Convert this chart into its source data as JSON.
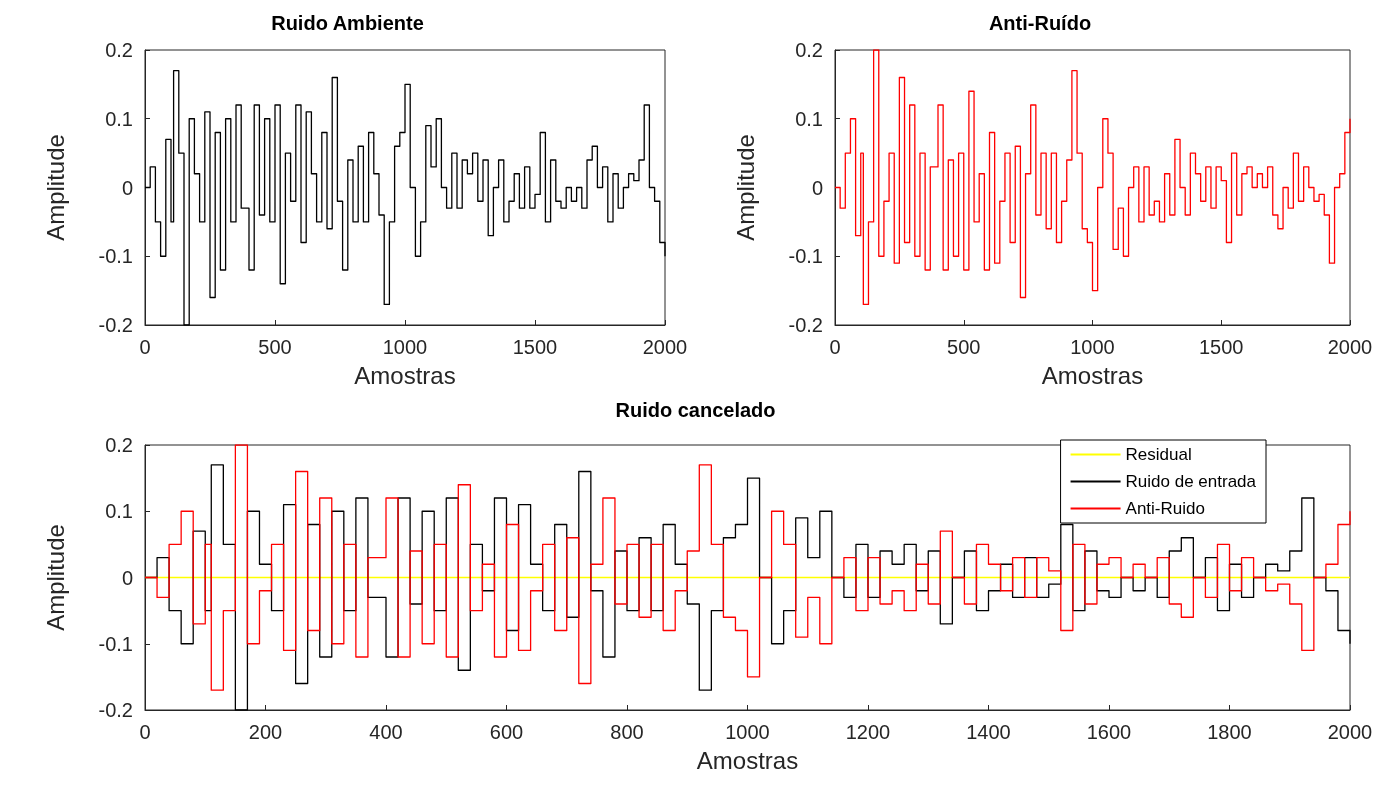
{
  "chart_data": [
    {
      "type": "step",
      "title": "Ruido Ambiente",
      "xlabel": "Amostras",
      "ylabel": "Amplitude",
      "xlim": [
        0,
        2000
      ],
      "xticks": [
        0,
        500,
        1000,
        1500,
        2000
      ],
      "ylim": [
        -0.2,
        0.2
      ],
      "yticks": [
        -0.2,
        -0.1,
        0,
        0.1,
        0.2
      ],
      "grid": false,
      "legend": false,
      "x": [
        0,
        20,
        40,
        60,
        80,
        100,
        110,
        130,
        150,
        170,
        190,
        210,
        230,
        250,
        270,
        290,
        310,
        330,
        350,
        370,
        400,
        420,
        440,
        460,
        480,
        500,
        520,
        540,
        560,
        580,
        600,
        620,
        640,
        660,
        680,
        700,
        720,
        740,
        760,
        780,
        800,
        820,
        840,
        860,
        880,
        900,
        920,
        940,
        960,
        980,
        1000,
        1020,
        1040,
        1060,
        1080,
        1100,
        1120,
        1140,
        1160,
        1180,
        1200,
        1220,
        1240,
        1260,
        1280,
        1300,
        1320,
        1340,
        1360,
        1380,
        1400,
        1420,
        1440,
        1460,
        1480,
        1500,
        1520,
        1540,
        1560,
        1580,
        1600,
        1620,
        1640,
        1660,
        1680,
        1700,
        1720,
        1740,
        1760,
        1780,
        1800,
        1820,
        1840,
        1860,
        1880,
        1900,
        1920,
        1940,
        1960,
        1980,
        2000
      ],
      "series": [
        {
          "color": "#000000",
          "values": [
            0,
            0.03,
            -0.05,
            -0.1,
            0.07,
            -0.05,
            0.17,
            0.05,
            -0.2,
            0.1,
            0.02,
            -0.05,
            0.11,
            -0.16,
            0.08,
            -0.12,
            0.1,
            -0.05,
            0.12,
            -0.03,
            -0.12,
            0.12,
            -0.04,
            0.1,
            -0.05,
            0.12,
            -0.14,
            0.05,
            -0.02,
            0.12,
            -0.08,
            0.11,
            0.02,
            -0.05,
            0.08,
            -0.06,
            0.16,
            -0.02,
            -0.12,
            0.04,
            -0.05,
            0.06,
            -0.05,
            0.08,
            0.02,
            -0.04,
            -0.17,
            -0.05,
            0.06,
            0.08,
            0.15,
            0,
            -0.1,
            -0.05,
            0.09,
            0.03,
            0.1,
            0,
            -0.03,
            0.05,
            -0.03,
            0.04,
            0.02,
            0.05,
            -0.02,
            0.04,
            -0.07,
            0,
            0.04,
            -0.05,
            -0.02,
            0.02,
            -0.03,
            0.03,
            -0.03,
            -0.01,
            0.08,
            -0.05,
            0.04,
            -0.02,
            -0.03,
            0,
            -0.02,
            0,
            -0.03,
            0.04,
            0.06,
            0,
            0.03,
            -0.05,
            0.02,
            -0.03,
            0,
            0.02,
            0.01,
            0.04,
            0.12,
            0,
            -0.02,
            -0.08,
            -0.1
          ]
        }
      ]
    },
    {
      "type": "step",
      "title": "Anti-Ruído",
      "xlabel": "Amostras",
      "ylabel": "Amplitude",
      "xlim": [
        0,
        2000
      ],
      "xticks": [
        0,
        500,
        1000,
        1500,
        2000
      ],
      "ylim": [
        -0.2,
        0.2
      ],
      "yticks": [
        -0.2,
        -0.1,
        0,
        0.1,
        0.2
      ],
      "grid": false,
      "legend": false,
      "x": [
        0,
        20,
        40,
        60,
        80,
        100,
        110,
        130,
        150,
        170,
        190,
        210,
        230,
        250,
        270,
        290,
        310,
        330,
        350,
        370,
        400,
        420,
        440,
        460,
        480,
        500,
        520,
        540,
        560,
        580,
        600,
        620,
        640,
        660,
        680,
        700,
        720,
        740,
        760,
        780,
        800,
        820,
        840,
        860,
        880,
        900,
        920,
        940,
        960,
        980,
        1000,
        1020,
        1040,
        1060,
        1080,
        1100,
        1120,
        1140,
        1160,
        1180,
        1200,
        1220,
        1240,
        1260,
        1280,
        1300,
        1320,
        1340,
        1360,
        1380,
        1400,
        1420,
        1440,
        1460,
        1480,
        1500,
        1520,
        1540,
        1560,
        1580,
        1600,
        1620,
        1640,
        1660,
        1680,
        1700,
        1720,
        1740,
        1760,
        1780,
        1800,
        1820,
        1840,
        1860,
        1880,
        1900,
        1920,
        1940,
        1960,
        1980,
        2000
      ],
      "series": [
        {
          "color": "#ff0000",
          "values": [
            0,
            -0.03,
            0.05,
            0.1,
            -0.07,
            0.05,
            -0.17,
            -0.05,
            0.2,
            -0.1,
            -0.02,
            0.05,
            -0.11,
            0.16,
            -0.08,
            0.12,
            -0.1,
            0.05,
            -0.12,
            0.03,
            0.12,
            -0.12,
            0.04,
            -0.1,
            0.05,
            -0.12,
            0.14,
            -0.05,
            0.02,
            -0.12,
            0.08,
            -0.11,
            -0.02,
            0.05,
            -0.08,
            0.06,
            -0.16,
            0.02,
            0.12,
            -0.04,
            0.05,
            -0.06,
            0.05,
            -0.08,
            -0.02,
            0.04,
            0.17,
            0.05,
            -0.06,
            -0.08,
            -0.15,
            0,
            0.1,
            0.05,
            -0.09,
            -0.03,
            -0.1,
            0,
            0.03,
            -0.05,
            0.03,
            -0.04,
            -0.02,
            -0.05,
            0.02,
            -0.04,
            0.07,
            0,
            -0.04,
            0.05,
            0.02,
            -0.02,
            0.03,
            -0.03,
            0.03,
            0.01,
            -0.08,
            0.05,
            -0.04,
            0.02,
            0.03,
            0,
            0.02,
            0,
            0.03,
            -0.04,
            -0.06,
            0,
            -0.03,
            0.05,
            -0.02,
            0.03,
            0,
            -0.02,
            -0.01,
            -0.04,
            -0.11,
            0,
            0.02,
            0.08,
            0.1
          ]
        }
      ]
    },
    {
      "type": "step",
      "title": "Ruido cancelado",
      "xlabel": "Amostras",
      "ylabel": "Amplitude",
      "xlim": [
        0,
        2000
      ],
      "xticks": [
        0,
        200,
        400,
        600,
        800,
        1000,
        1200,
        1400,
        1600,
        1800,
        2000
      ],
      "ylim": [
        -0.2,
        0.2
      ],
      "yticks": [
        -0.2,
        -0.1,
        0,
        0.1,
        0.2
      ],
      "grid": false,
      "legend": "top right",
      "x": [
        0,
        20,
        40,
        60,
        80,
        100,
        110,
        130,
        150,
        170,
        190,
        210,
        230,
        250,
        270,
        290,
        310,
        330,
        350,
        370,
        400,
        420,
        440,
        460,
        480,
        500,
        520,
        540,
        560,
        580,
        600,
        620,
        640,
        660,
        680,
        700,
        720,
        740,
        760,
        780,
        800,
        820,
        840,
        860,
        880,
        900,
        920,
        940,
        960,
        980,
        1000,
        1020,
        1040,
        1060,
        1080,
        1100,
        1120,
        1140,
        1160,
        1180,
        1200,
        1220,
        1240,
        1260,
        1280,
        1300,
        1320,
        1340,
        1360,
        1380,
        1400,
        1420,
        1440,
        1460,
        1480,
        1500,
        1520,
        1540,
        1560,
        1580,
        1600,
        1620,
        1640,
        1660,
        1680,
        1700,
        1720,
        1740,
        1760,
        1780,
        1800,
        1820,
        1840,
        1860,
        1880,
        1900,
        1920,
        1940,
        1960,
        1980,
        2000
      ],
      "series": [
        {
          "name": "Residual",
          "color": "#ffff00",
          "x": [
            0,
            2000
          ],
          "values": [
            0,
            0
          ]
        },
        {
          "name": "Ruido de entrada",
          "color": "#000000",
          "values": [
            0,
            0.03,
            -0.05,
            -0.1,
            0.07,
            -0.05,
            0.17,
            0.05,
            -0.2,
            0.1,
            0.02,
            -0.05,
            0.11,
            -0.16,
            0.08,
            -0.12,
            0.1,
            -0.05,
            0.12,
            -0.03,
            -0.12,
            0.12,
            -0.04,
            0.1,
            -0.05,
            0.12,
            -0.14,
            0.05,
            -0.02,
            0.12,
            -0.08,
            0.11,
            0.02,
            -0.05,
            0.08,
            -0.06,
            0.16,
            -0.02,
            -0.12,
            0.04,
            -0.05,
            0.06,
            -0.05,
            0.08,
            0.02,
            -0.04,
            -0.17,
            -0.05,
            0.06,
            0.08,
            0.15,
            0,
            -0.1,
            -0.05,
            0.09,
            0.03,
            0.1,
            0,
            -0.03,
            0.05,
            -0.03,
            0.04,
            0.02,
            0.05,
            -0.02,
            0.04,
            -0.07,
            0,
            0.04,
            -0.05,
            -0.02,
            0.02,
            -0.03,
            0.03,
            -0.03,
            -0.01,
            0.08,
            -0.05,
            0.04,
            -0.02,
            -0.03,
            0,
            -0.02,
            0,
            -0.03,
            0.04,
            0.06,
            0,
            0.03,
            -0.05,
            0.02,
            -0.03,
            0,
            0.02,
            0.01,
            0.04,
            0.12,
            0,
            -0.02,
            -0.08,
            -0.1
          ]
        },
        {
          "name": "Anti-Ruido",
          "color": "#ff0000",
          "values": [
            0,
            -0.03,
            0.05,
            0.1,
            -0.07,
            0.05,
            -0.17,
            -0.05,
            0.2,
            -0.1,
            -0.02,
            0.05,
            -0.11,
            0.16,
            -0.08,
            0.12,
            -0.1,
            0.05,
            -0.12,
            0.03,
            0.12,
            -0.12,
            0.04,
            -0.1,
            0.05,
            -0.12,
            0.14,
            -0.05,
            0.02,
            -0.12,
            0.08,
            -0.11,
            -0.02,
            0.05,
            -0.08,
            0.06,
            -0.16,
            0.02,
            0.12,
            -0.04,
            0.05,
            -0.06,
            0.05,
            -0.08,
            -0.02,
            0.04,
            0.17,
            0.05,
            -0.06,
            -0.08,
            -0.15,
            0,
            0.1,
            0.05,
            -0.09,
            -0.03,
            -0.1,
            0,
            0.03,
            -0.05,
            0.03,
            -0.04,
            -0.02,
            -0.05,
            0.02,
            -0.04,
            0.07,
            0,
            -0.04,
            0.05,
            0.02,
            -0.02,
            0.03,
            -0.03,
            0.03,
            0.01,
            -0.08,
            0.05,
            -0.04,
            0.02,
            0.03,
            0,
            0.02,
            0,
            0.03,
            -0.04,
            -0.06,
            0,
            -0.03,
            0.05,
            -0.02,
            0.03,
            0,
            -0.02,
            -0.01,
            -0.04,
            -0.11,
            0,
            0.02,
            0.08,
            0.1
          ]
        }
      ]
    }
  ]
}
